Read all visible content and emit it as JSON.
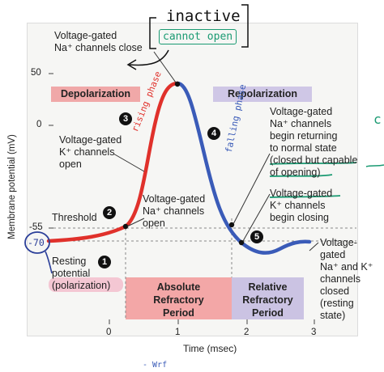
{
  "figure": {
    "ylabel": "Membrane potential (mV)",
    "xlabel": "Time (msec)",
    "y_ticks": [
      "50",
      "0",
      "-55",
      "-70"
    ],
    "x_ticks": [
      "0",
      "1",
      "2",
      "3"
    ]
  },
  "phases": {
    "depolarization": "Depolarization",
    "repolarization": "Repolarization",
    "absolute_refractory": [
      "Absolute",
      "Refractory",
      "Period"
    ],
    "relative_refractory": [
      "Relative",
      "Refractory",
      "Period"
    ]
  },
  "annotations": {
    "top_label": [
      "Voltage-gated",
      "Na⁺ channels close"
    ],
    "step3": [
      "Voltage-gated",
      "K⁺ channels",
      "open"
    ],
    "threshold": "Threshold",
    "step2": [
      "Voltage-gated",
      "Na⁺ channels",
      "open"
    ],
    "step4": [
      "Voltage-gated",
      "Na⁺ channels",
      "begin returning",
      "to normal state",
      "(closed but capable",
      "of opening)"
    ],
    "step5_upper": [
      "Voltage-gated",
      "K⁺ channels",
      "begin closing"
    ],
    "step5_right": [
      "Voltage-",
      "gated",
      "Na⁺ and K⁺",
      "channels",
      "closed",
      "(resting",
      "state)"
    ],
    "step1": [
      "Resting",
      "potential",
      "(polarization)"
    ]
  },
  "markers": {
    "m1": "1",
    "m2": "2",
    "m3": "3",
    "m4": "4",
    "m5": "5"
  },
  "handwriting": {
    "inactive": "inactive",
    "cannot_open": "cannot open",
    "rising_phase": "rising phase",
    "falling_phase": "falling phase",
    "minus70": "-70",
    "bottom_scribble": "- Wrf",
    "edge_scribble": "c"
  },
  "colors": {
    "rising": "#e0312b",
    "falling": "#3a5bb8",
    "depol_box": "#f0a8a8",
    "repol_box": "#cfc7e6",
    "abs_box": "#f3a7a7",
    "rel_box": "#cbc3e3",
    "pen_blue": "#2b3f99",
    "pen_green": "#1a9a72",
    "highlight_pink": "#f2a0b8"
  }
}
